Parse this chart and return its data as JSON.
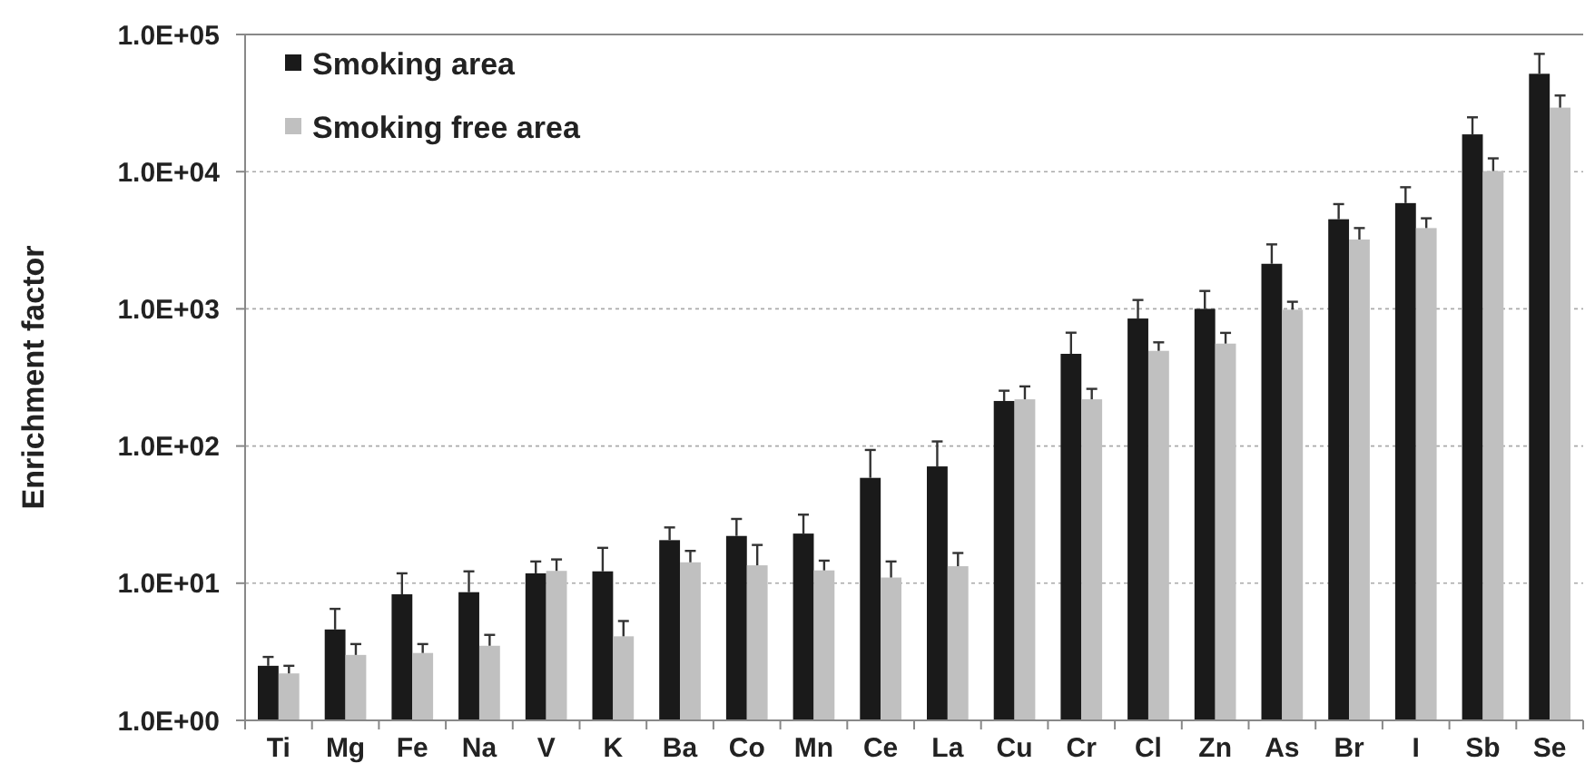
{
  "chart_data": {
    "type": "bar",
    "ylabel": "Enrichment  factor",
    "log": true,
    "grid": "y",
    "legend": "top left",
    "categories": [
      "Ti",
      "Mg",
      "Fe",
      "Na",
      "V",
      "K",
      "Ba",
      "Co",
      "Mn",
      "Ce",
      "La",
      "Cu",
      "Cr",
      "Cl",
      "Zn",
      "As",
      "Br",
      "I",
      "Sb",
      "Se"
    ],
    "ylim": [
      1,
      100000
    ],
    "yticks": [
      {
        "value": 1,
        "label": "1.0E+00"
      },
      {
        "value": 10,
        "label": "1.0E+01"
      },
      {
        "value": 100,
        "label": "1.0E+02"
      },
      {
        "value": 1000,
        "label": "1.0E+03"
      },
      {
        "value": 10000,
        "label": "1.0E+04"
      },
      {
        "value": 100000,
        "label": "1.0E+05"
      }
    ],
    "series": [
      {
        "name": "Smoking area",
        "color": "#1a1a1a",
        "values": [
          2.5,
          4.6,
          8.3,
          8.6,
          11.8,
          12.2,
          20.6,
          22.1,
          23,
          58.6,
          71,
          213,
          470,
          850,
          1000,
          2130,
          4500,
          5900,
          18700,
          51700
        ],
        "errors": [
          0.4,
          1.9,
          3.5,
          3.6,
          2.6,
          5.9,
          4.9,
          7.3,
          8.6,
          35,
          37,
          40,
          200,
          310,
          350,
          820,
          1300,
          1800,
          6200,
          20500
        ]
      },
      {
        "name": "Smoking free area",
        "color": "#c0c0c0",
        "values": [
          2.2,
          3.0,
          3.1,
          3.5,
          12.3,
          4.1,
          14.2,
          13.5,
          12.4,
          11,
          13.3,
          219,
          219,
          494,
          558,
          986,
          3200,
          3880,
          10100,
          29300
        ],
        "errors": [
          0.3,
          0.6,
          0.5,
          0.7,
          2.6,
          1.2,
          3,
          5.5,
          2.2,
          3.4,
          3.3,
          53,
          42,
          76,
          110,
          140,
          680,
          690,
          2400,
          6600
        ]
      }
    ]
  }
}
